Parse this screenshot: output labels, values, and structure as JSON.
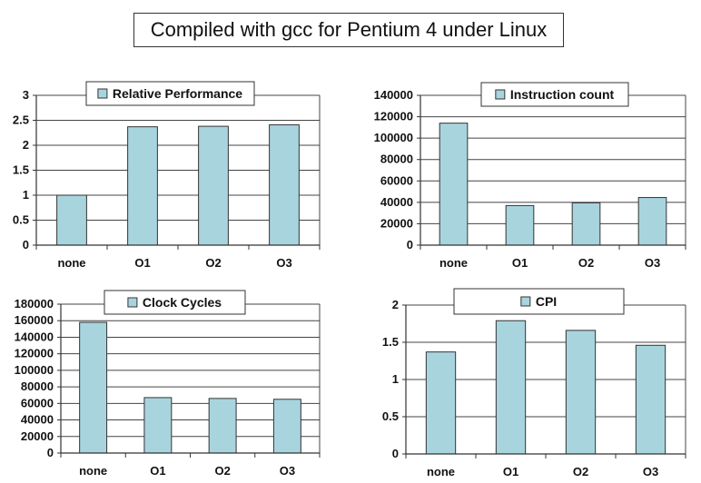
{
  "title": "Compiled with gcc for Pentium 4 under Linux",
  "colors": {
    "bar": "#a8d4de",
    "bar_stroke": "#333333",
    "grid": "#444444",
    "axis": "#333333"
  },
  "chart_data": [
    {
      "type": "bar",
      "legend": "Relative Performance",
      "categories": [
        "none",
        "O1",
        "O2",
        "O3"
      ],
      "values": [
        1.0,
        2.37,
        2.38,
        2.41
      ],
      "ylim": [
        0,
        3
      ],
      "yticks": [
        0,
        0.5,
        1,
        1.5,
        2,
        2.5,
        3
      ],
      "grid": true,
      "legend_position": "top-center"
    },
    {
      "type": "bar",
      "legend": "Instruction count",
      "categories": [
        "none",
        "O1",
        "O2",
        "O3"
      ],
      "values": [
        114000,
        37000,
        39500,
        44500
      ],
      "ylim": [
        0,
        140000
      ],
      "yticks": [
        0,
        20000,
        40000,
        60000,
        80000,
        100000,
        120000,
        140000
      ],
      "grid": true,
      "legend_position": "top-center"
    },
    {
      "type": "bar",
      "legend": "Clock Cycles",
      "categories": [
        "none",
        "O1",
        "O2",
        "O3"
      ],
      "values": [
        158000,
        67000,
        66000,
        65000
      ],
      "ylim": [
        0,
        180000
      ],
      "yticks": [
        0,
        20000,
        40000,
        60000,
        80000,
        100000,
        120000,
        140000,
        160000,
        180000
      ],
      "grid": true,
      "legend_position": "top-center"
    },
    {
      "type": "bar",
      "legend": "CPI",
      "categories": [
        "none",
        "O1",
        "O2",
        "O3"
      ],
      "values": [
        1.37,
        1.79,
        1.66,
        1.46
      ],
      "ylim": [
        0,
        2
      ],
      "yticks": [
        0,
        0.5,
        1,
        1.5,
        2
      ],
      "grid": true,
      "legend_position": "top-center"
    }
  ]
}
